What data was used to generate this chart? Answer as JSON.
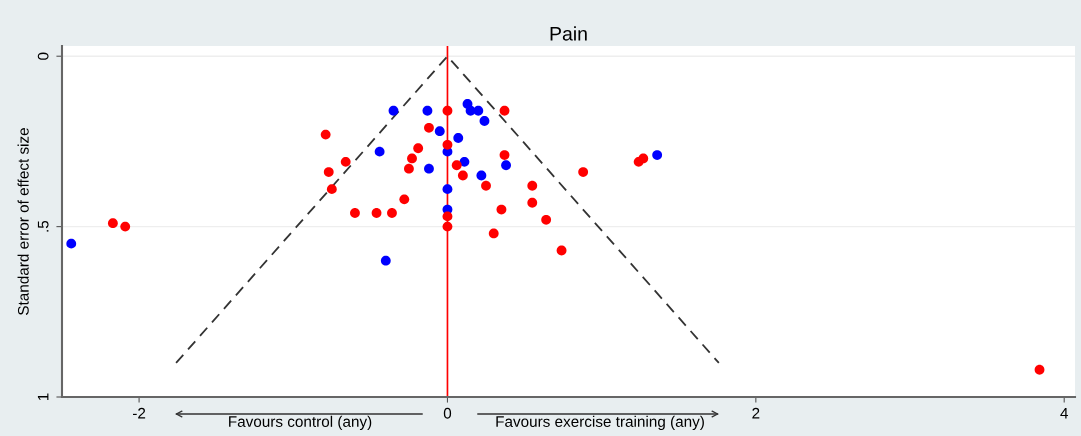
{
  "chart_data": {
    "type": "scatter",
    "title": "Pain",
    "ylabel": "Standard error of effect size",
    "annotations": [
      "Favours control (any)",
      "Favours exercise training (any)"
    ],
    "xlim": [
      -2.5,
      4.07
    ],
    "xticks": [
      -2,
      0,
      2,
      4
    ],
    "ylim": [
      1,
      -0.03
    ],
    "yticks": [
      0,
      {
        "value": 0.5,
        "label": ".5"
      },
      1
    ],
    "grid": "y",
    "marker": "circle",
    "legend": false,
    "ref_lines": [
      {
        "axis": "x",
        "value": 0,
        "color": "#ff0000",
        "line_style": "solid"
      }
    ],
    "series": [
      {
        "color": "#0000ff",
        "x": [
          -0.35,
          -0.13,
          -0.05,
          0.07,
          0.13,
          0.15,
          0.2,
          0.24,
          -0.44,
          0,
          0.11,
          -0.12,
          0.38,
          0.22,
          0,
          0,
          -0.4,
          1.36,
          -2.44
        ],
        "values": [
          0.16,
          0.16,
          0.22,
          0.24,
          0.14,
          0.16,
          0.16,
          0.19,
          0.28,
          0.28,
          0.31,
          0.33,
          0.32,
          0.35,
          0.39,
          0.45,
          0.6,
          0.29,
          0.55
        ]
      },
      {
        "color": "#ff0000",
        "x": [
          -0.79,
          0,
          0.37,
          -0.12,
          0,
          -0.19,
          -0.23,
          -0.66,
          0.37,
          -0.77,
          -0.25,
          0.06,
          0.1,
          0.88,
          1.24,
          1.27,
          -0.75,
          0.25,
          0.55,
          -0.28,
          0.55,
          -0.6,
          -0.46,
          -0.36,
          0.35,
          0.64,
          0,
          0,
          0.3,
          0.74,
          -2.17,
          -2.09,
          3.84
        ],
        "values": [
          0.23,
          0.16,
          0.16,
          0.21,
          0.26,
          0.27,
          0.3,
          0.31,
          0.29,
          0.34,
          0.33,
          0.32,
          0.35,
          0.34,
          0.31,
          0.3,
          0.39,
          0.38,
          0.38,
          0.42,
          0.43,
          0.46,
          0.46,
          0.46,
          0.45,
          0.48,
          0.47,
          0.5,
          0.52,
          0.57,
          0.49,
          0.5,
          0.92
        ]
      },
      {
        "type": "line",
        "color": "#333333",
        "line_style": "dashed",
        "marker": "none",
        "x": [
          -1.76,
          0,
          1.76
        ],
        "values": [
          0.9,
          0,
          0.9
        ]
      }
    ]
  }
}
